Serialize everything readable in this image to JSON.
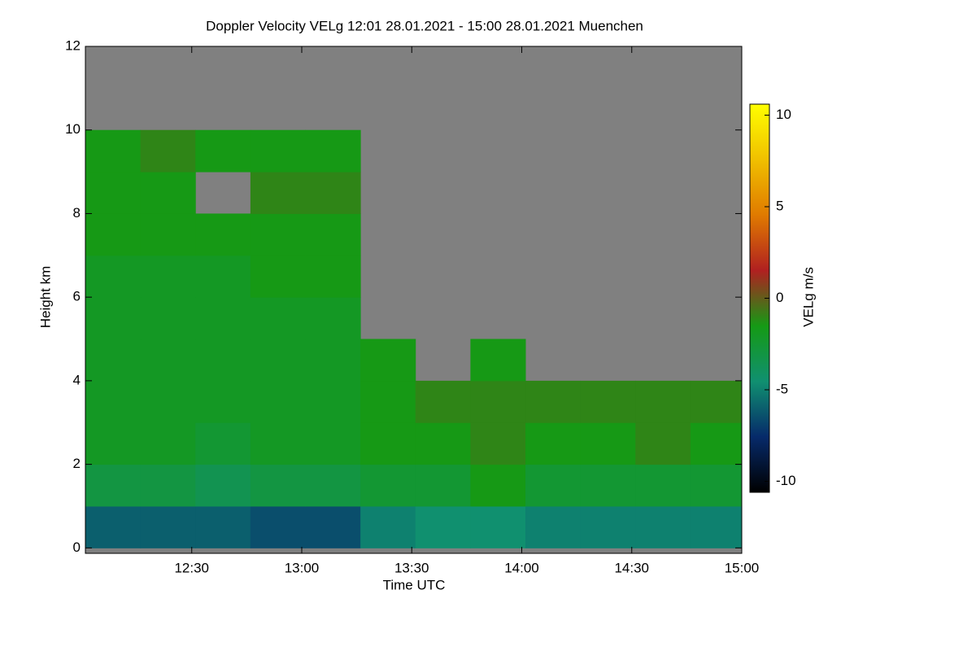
{
  "chart_data": {
    "type": "heatmap",
    "title": "Doppler Velocity VELg   12:01 28.01.2021 - 15:00 28.01.2021 Muenchen",
    "x_label": "Time UTC",
    "y_label": "Height km",
    "colorbar_label": "VELg m/s",
    "xlim": [
      721,
      900
    ],
    "xticks": [
      {
        "value": 750,
        "label": "12:30"
      },
      {
        "value": 780,
        "label": "13:00"
      },
      {
        "value": 810,
        "label": "13:30"
      },
      {
        "value": 840,
        "label": "14:00"
      },
      {
        "value": 870,
        "label": "14:30"
      },
      {
        "value": 900,
        "label": "15:00"
      }
    ],
    "ylim": [
      -0.13,
      12
    ],
    "yticks": [
      0,
      2,
      4,
      6,
      8,
      10,
      12
    ],
    "x_bins": [
      721,
      736,
      751,
      766,
      781,
      796,
      811,
      826,
      841,
      856,
      871,
      886,
      900
    ],
    "y_bins": [
      0,
      1,
      2,
      3,
      4,
      5,
      6,
      7,
      8,
      9,
      10,
      11,
      12
    ],
    "z": [
      [
        -6,
        -6,
        -6,
        -6.5,
        -6.5,
        -5,
        -4.5,
        -4.5,
        -5,
        -5,
        -5,
        -5
      ],
      [
        -3,
        -3,
        -3.5,
        -3,
        -3,
        -2.5,
        -2.5,
        -1.5,
        -2.5,
        -2.5,
        -2.5,
        -2.5
      ],
      [
        -2,
        -2,
        -2.5,
        -2,
        -2,
        -1.5,
        -1.5,
        -1,
        -1.5,
        -1.5,
        -1,
        -1.5
      ],
      [
        -2,
        -2,
        -2,
        -2,
        -2,
        -1.5,
        -1,
        -1,
        -1,
        -1,
        -1,
        -1
      ],
      [
        -2,
        -2,
        -2,
        -2,
        -2,
        -1.5,
        null,
        -1.5,
        null,
        null,
        null,
        null
      ],
      [
        -2,
        -2,
        -2,
        -2,
        -2,
        null,
        null,
        null,
        null,
        null,
        null,
        null
      ],
      [
        -2,
        -2,
        -2,
        -1.5,
        -1.5,
        null,
        null,
        null,
        null,
        null,
        null,
        null
      ],
      [
        -1.5,
        -1.5,
        -1.5,
        -1.5,
        -1.5,
        null,
        null,
        null,
        null,
        null,
        null,
        null
      ],
      [
        -1.5,
        -1.5,
        null,
        -1,
        -1,
        null,
        null,
        null,
        null,
        null,
        null,
        null
      ],
      [
        -1.5,
        -1,
        -1.5,
        -1.5,
        -1.5,
        null,
        null,
        null,
        null,
        null,
        null,
        null
      ],
      [
        null,
        null,
        null,
        null,
        null,
        null,
        null,
        null,
        null,
        null,
        null,
        null
      ],
      [
        null,
        null,
        null,
        null,
        null,
        null,
        null,
        null,
        null,
        null,
        null,
        null
      ]
    ],
    "clim": [
      -10.6,
      10.6
    ],
    "cticks": [
      -10,
      -5,
      0,
      5,
      10
    ],
    "colormap": [
      "#000000",
      "#062a6a",
      "#109070",
      "#159a15",
      "#b02020",
      "#e07a00",
      "#f0c000",
      "#ffff00"
    ],
    "missing_color": "#808080"
  }
}
